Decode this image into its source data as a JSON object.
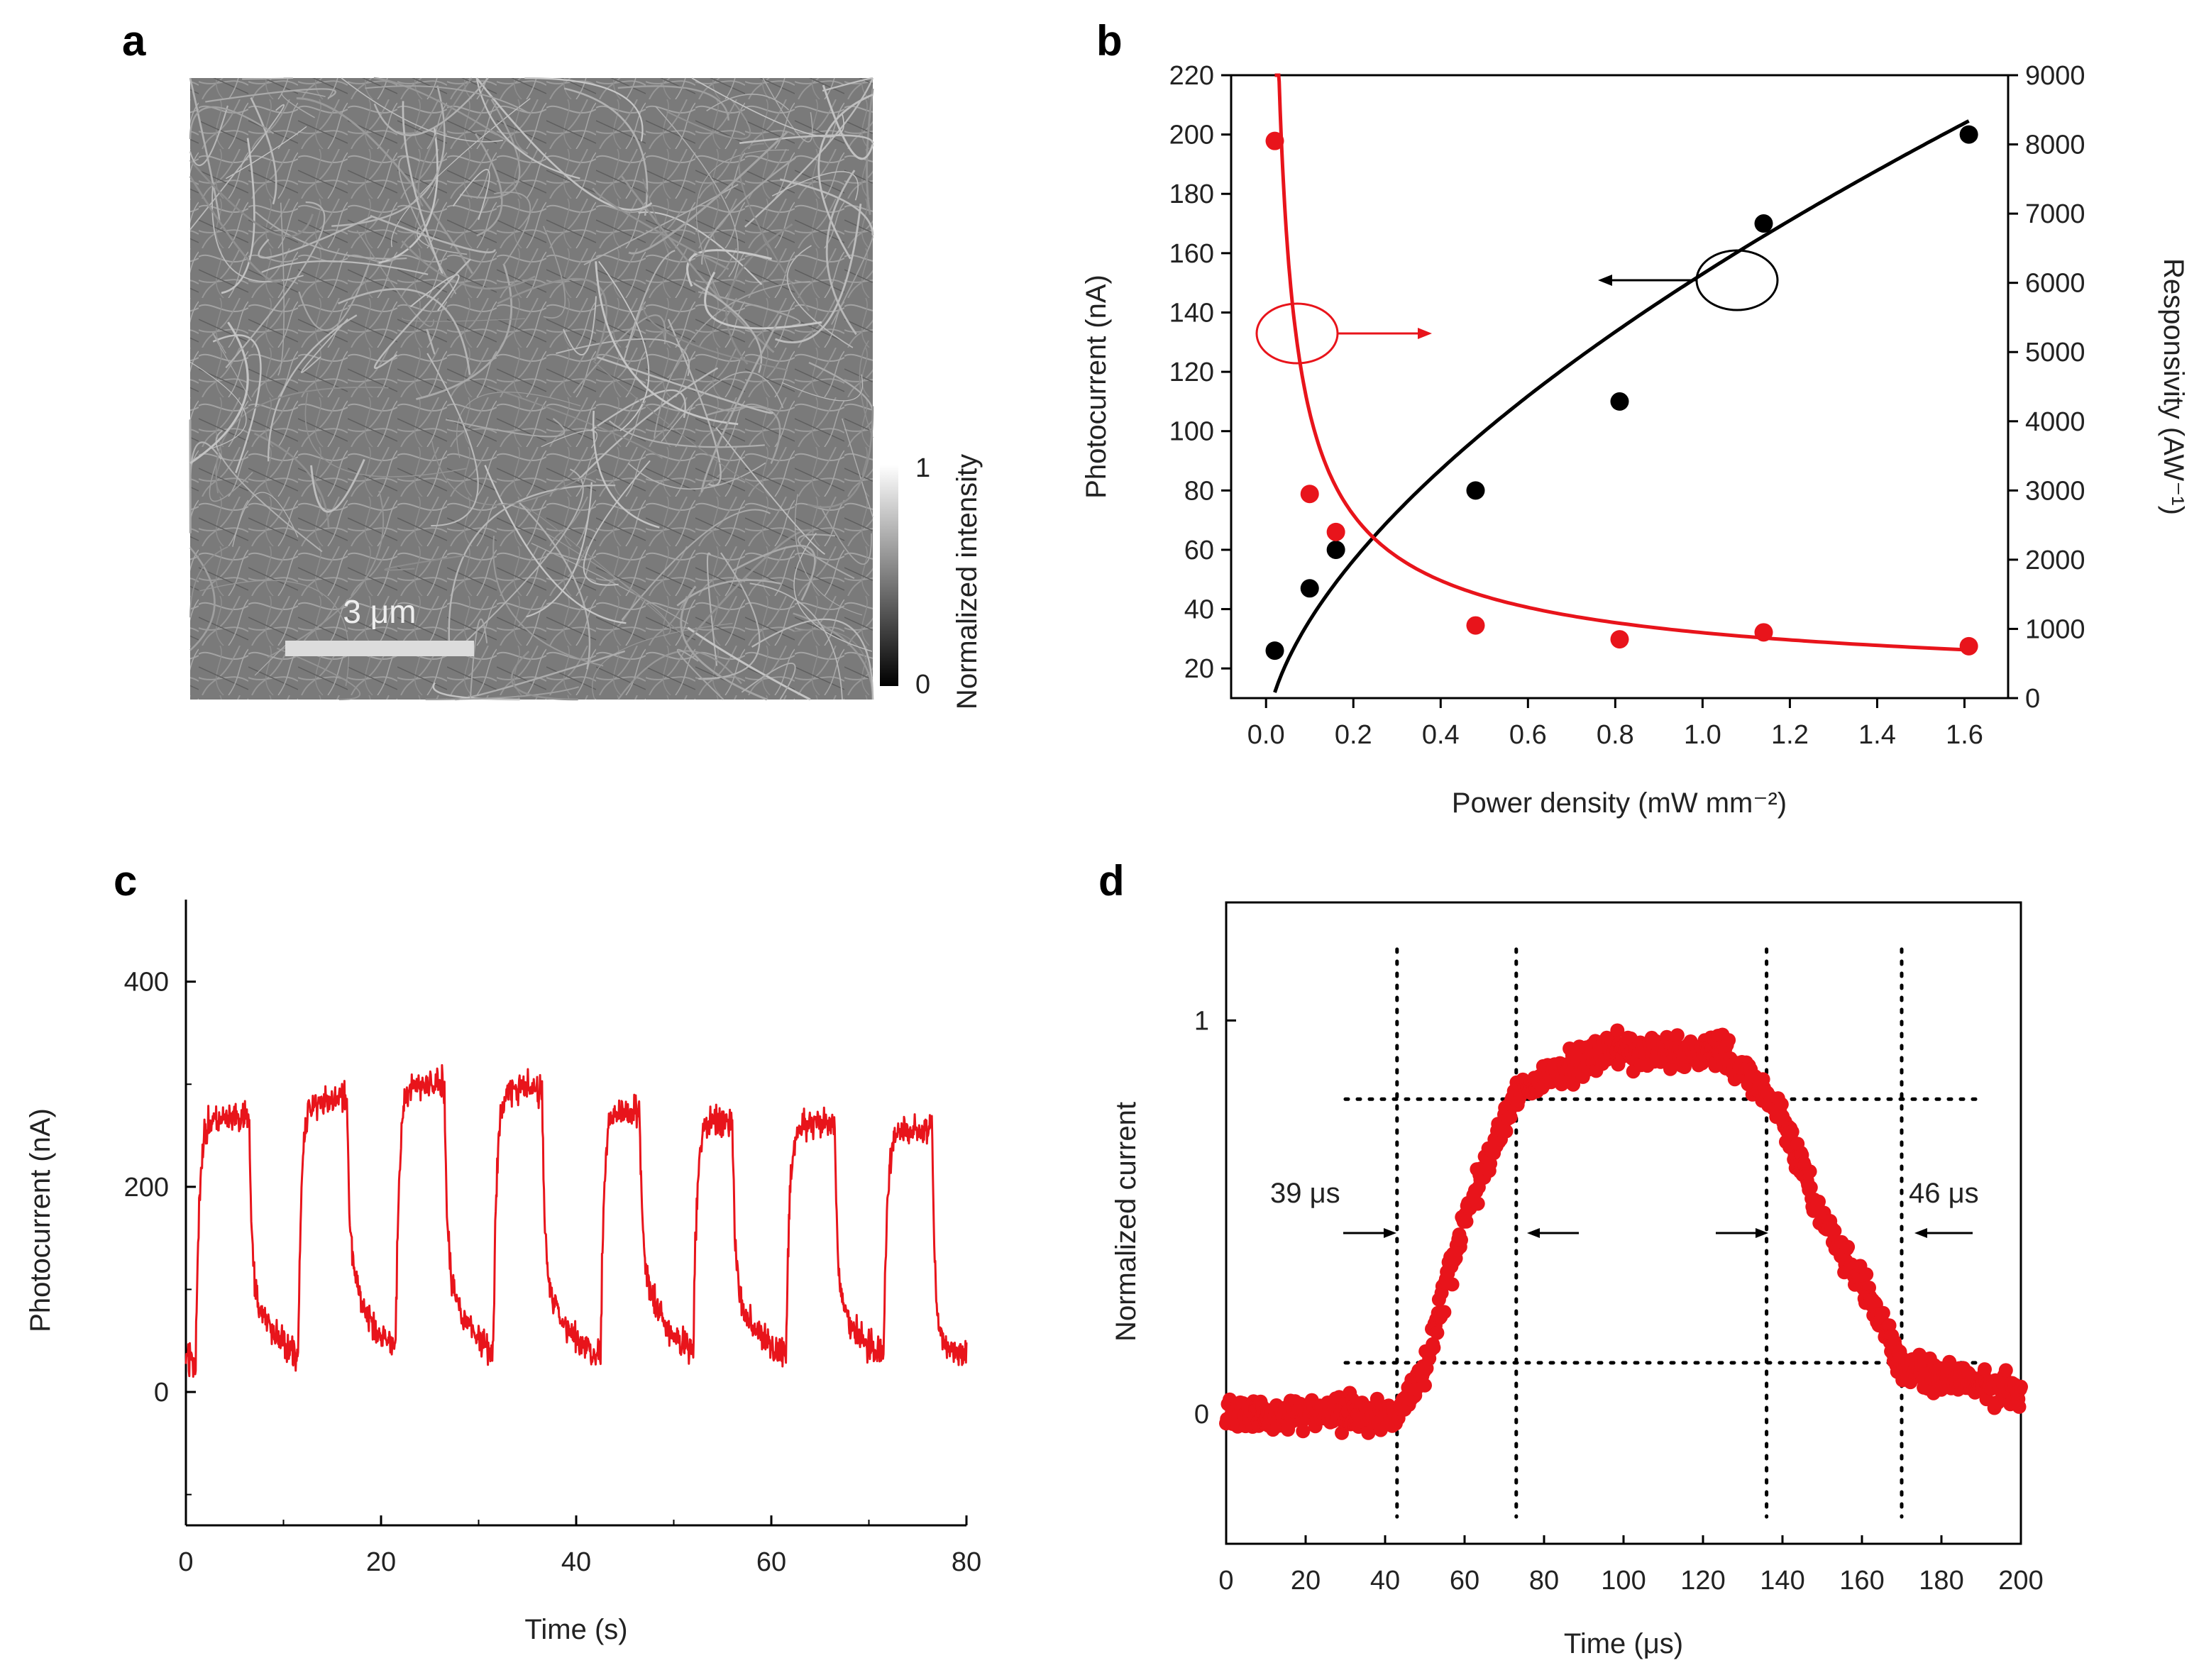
{
  "panels": {
    "a": {
      "letter": "a",
      "scale_bar_label": "3 μm",
      "colorbar_label": "Normalized intensity",
      "colorbar_max": "1",
      "colorbar_min": "0"
    },
    "b": {
      "letter": "b"
    },
    "c": {
      "letter": "c"
    },
    "d": {
      "letter": "d",
      "rise_label": "39 μs",
      "fall_label": "46 μs"
    }
  },
  "colors": {
    "red": "#e8141b",
    "black": "#000000",
    "sem_gray": "#7a7a7a"
  },
  "chart_data": [
    {
      "id": "b",
      "type": "scatter",
      "title": "",
      "xlabel": "Power density (mW mm⁻²)",
      "ylabel_left": "Photocurrent (nA)",
      "ylabel_right": "Responsivity (AW⁻¹)",
      "xlim": [
        -0.08,
        1.7
      ],
      "ylim_left": [
        10,
        220
      ],
      "ylim_right": [
        0,
        9000
      ],
      "xticks": [
        0.0,
        0.2,
        0.4,
        0.6,
        0.8,
        1.0,
        1.2,
        1.4,
        1.6
      ],
      "xtick_labels": [
        "0.0",
        "0.2",
        "0.4",
        "0.6",
        "0.8",
        "1.0",
        "1.2",
        "1.4",
        "1.6"
      ],
      "yticks_left": [
        20,
        40,
        60,
        80,
        100,
        120,
        140,
        160,
        180,
        200,
        220
      ],
      "yticks_right": [
        0,
        1000,
        2000,
        3000,
        4000,
        5000,
        6000,
        7000,
        8000,
        9000
      ],
      "series": [
        {
          "name": "Photocurrent",
          "axis": "left",
          "color": "black",
          "x": [
            0.02,
            0.1,
            0.16,
            0.48,
            0.81,
            1.14,
            1.61
          ],
          "y": [
            26,
            47,
            60,
            80,
            110,
            170,
            200
          ],
          "fit": {
            "type": "power",
            "a": 156,
            "b": 0.6,
            "c": -3,
            "x_range": [
              0.02,
              1.61
            ]
          }
        },
        {
          "name": "Responsivity",
          "axis": "right",
          "color": "red",
          "x": [
            0.02,
            0.1,
            0.16,
            0.48,
            0.81,
            1.14,
            1.61
          ],
          "y": [
            8050,
            2950,
            2400,
            1050,
            850,
            950,
            750
          ],
          "fit": {
            "type": "inverse",
            "a": 945,
            "p": 0.64,
            "x_range": [
              0.02,
              1.61
            ]
          }
        }
      ]
    },
    {
      "id": "c",
      "type": "line",
      "title": "",
      "xlabel": "Time (s)",
      "ylabel": "Photocurrent (nA)",
      "xlim": [
        0,
        80
      ],
      "ylim": [
        -130,
        480
      ],
      "xticks": [
        0,
        20,
        40,
        60,
        80
      ],
      "yticks": [
        0,
        200,
        400
      ],
      "series": [
        {
          "name": "Photocurrent",
          "color": "red",
          "pulses": [
            {
              "on": 1.0,
              "off": 6.5,
              "high": 265,
              "low": 75
            },
            {
              "on": 11.5,
              "off": 16.5,
              "high": 285,
              "low": 105
            },
            {
              "on": 21.5,
              "off": 26.5,
              "high": 300,
              "low": 95
            },
            {
              "on": 31.5,
              "off": 36.5,
              "high": 295,
              "low": 90
            },
            {
              "on": 42.5,
              "off": 46.5,
              "high": 275,
              "low": 100
            },
            {
              "on": 52.0,
              "off": 56.0,
              "high": 265,
              "low": 80
            },
            {
              "on": 61.5,
              "off": 66.5,
              "high": 260,
              "low": 70
            },
            {
              "on": 71.5,
              "off": 76.5,
              "high": 255,
              "low": 30
            }
          ]
        }
      ]
    },
    {
      "id": "d",
      "type": "scatter",
      "title": "",
      "xlabel": "Time (μs)",
      "ylabel": "Normalized current",
      "xlim": [
        0,
        200
      ],
      "ylim": [
        -0.33,
        1.3
      ],
      "xticks": [
        0,
        20,
        40,
        60,
        80,
        100,
        120,
        140,
        160,
        180,
        200
      ],
      "yticks": [
        0,
        1
      ],
      "series": [
        {
          "name": "Normalized current",
          "color": "red",
          "envelope": [
            [
              0,
              0
            ],
            [
              43,
              0
            ],
            [
              50,
              0.12
            ],
            [
              60,
              0.5
            ],
            [
              73,
              0.82
            ],
            [
              95,
              0.92
            ],
            [
              125,
              0.92
            ],
            [
              138,
              0.8
            ],
            [
              150,
              0.5
            ],
            [
              162,
              0.3
            ],
            [
              170,
              0.12
            ],
            [
              178,
              0.1
            ],
            [
              200,
              0.05
            ]
          ]
        }
      ],
      "guides": {
        "vlines": [
          43,
          73,
          136,
          170
        ],
        "hlines": [
          0.8,
          0.13
        ]
      }
    }
  ]
}
